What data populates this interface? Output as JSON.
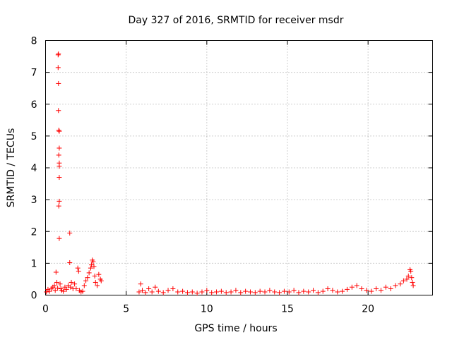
{
  "chart_data": {
    "type": "scatter",
    "title": "Day 327 of 2016, SRMTID for receiver msdr",
    "xlabel": "GPS time / hours",
    "ylabel": "SRMTID / TECUs",
    "xlim": [
      0,
      24
    ],
    "ylim": [
      0,
      8
    ],
    "x_ticks": [
      0,
      5,
      10,
      15,
      20
    ],
    "y_ticks": [
      0,
      1,
      2,
      3,
      4,
      5,
      6,
      7,
      8
    ],
    "grid": true,
    "marker": "plus",
    "series": [
      {
        "name": "SRMTID",
        "color": "#ff0000",
        "points": [
          [
            0.05,
            0.1
          ],
          [
            0.15,
            0.18
          ],
          [
            0.25,
            0.12
          ],
          [
            0.35,
            0.2
          ],
          [
            0.45,
            0.25
          ],
          [
            0.55,
            0.3
          ],
          [
            0.6,
            0.15
          ],
          [
            0.65,
            0.72
          ],
          [
            0.7,
            0.4
          ],
          [
            0.75,
            0.22
          ],
          [
            0.78,
            7.55
          ],
          [
            0.8,
            7.58
          ],
          [
            0.78,
            7.15
          ],
          [
            0.8,
            6.65
          ],
          [
            0.8,
            5.8
          ],
          [
            0.82,
            5.18
          ],
          [
            0.85,
            5.15
          ],
          [
            0.85,
            4.62
          ],
          [
            0.82,
            4.4
          ],
          [
            0.85,
            4.15
          ],
          [
            0.85,
            4.05
          ],
          [
            0.85,
            3.7
          ],
          [
            0.85,
            2.95
          ],
          [
            0.82,
            2.8
          ],
          [
            0.85,
            1.78
          ],
          [
            0.9,
            0.35
          ],
          [
            0.95,
            0.2
          ],
          [
            1.0,
            0.15
          ],
          [
            1.1,
            0.12
          ],
          [
            1.2,
            0.25
          ],
          [
            1.3,
            0.18
          ],
          [
            1.4,
            0.3
          ],
          [
            1.5,
            1.95
          ],
          [
            1.5,
            1.02
          ],
          [
            1.55,
            0.25
          ],
          [
            1.6,
            0.4
          ],
          [
            1.7,
            0.2
          ],
          [
            1.8,
            0.35
          ],
          [
            1.9,
            0.2
          ],
          [
            2.0,
            0.85
          ],
          [
            2.05,
            0.75
          ],
          [
            2.1,
            0.15
          ],
          [
            2.2,
            0.1
          ],
          [
            2.3,
            0.12
          ],
          [
            2.4,
            0.3
          ],
          [
            2.5,
            0.45
          ],
          [
            2.6,
            0.55
          ],
          [
            2.7,
            0.7
          ],
          [
            2.8,
            0.85
          ],
          [
            2.85,
            0.95
          ],
          [
            2.9,
            1.1
          ],
          [
            2.95,
            1.05
          ],
          [
            3.0,
            0.9
          ],
          [
            3.05,
            0.6
          ],
          [
            3.1,
            0.4
          ],
          [
            3.2,
            0.3
          ],
          [
            3.3,
            0.65
          ],
          [
            3.4,
            0.5
          ],
          [
            3.45,
            0.45
          ],
          [
            5.8,
            0.1
          ],
          [
            5.9,
            0.35
          ],
          [
            6.0,
            0.15
          ],
          [
            6.2,
            0.08
          ],
          [
            6.4,
            0.2
          ],
          [
            6.6,
            0.1
          ],
          [
            6.8,
            0.25
          ],
          [
            7.0,
            0.12
          ],
          [
            7.3,
            0.08
          ],
          [
            7.6,
            0.15
          ],
          [
            7.9,
            0.2
          ],
          [
            8.2,
            0.1
          ],
          [
            8.5,
            0.12
          ],
          [
            8.8,
            0.08
          ],
          [
            9.1,
            0.1
          ],
          [
            9.4,
            0.06
          ],
          [
            9.7,
            0.1
          ],
          [
            10.0,
            0.15
          ],
          [
            10.3,
            0.08
          ],
          [
            10.6,
            0.1
          ],
          [
            10.9,
            0.12
          ],
          [
            11.2,
            0.08
          ],
          [
            11.5,
            0.1
          ],
          [
            11.8,
            0.15
          ],
          [
            12.1,
            0.08
          ],
          [
            12.4,
            0.12
          ],
          [
            12.7,
            0.1
          ],
          [
            13.0,
            0.08
          ],
          [
            13.3,
            0.12
          ],
          [
            13.6,
            0.1
          ],
          [
            13.9,
            0.15
          ],
          [
            14.2,
            0.1
          ],
          [
            14.5,
            0.08
          ],
          [
            14.8,
            0.12
          ],
          [
            15.1,
            0.1
          ],
          [
            15.4,
            0.15
          ],
          [
            15.7,
            0.08
          ],
          [
            16.0,
            0.12
          ],
          [
            16.3,
            0.1
          ],
          [
            16.6,
            0.15
          ],
          [
            16.9,
            0.08
          ],
          [
            17.2,
            0.12
          ],
          [
            17.5,
            0.2
          ],
          [
            17.8,
            0.15
          ],
          [
            18.1,
            0.1
          ],
          [
            18.4,
            0.12
          ],
          [
            18.7,
            0.18
          ],
          [
            19.0,
            0.25
          ],
          [
            19.3,
            0.3
          ],
          [
            19.6,
            0.2
          ],
          [
            19.9,
            0.15
          ],
          [
            20.2,
            0.12
          ],
          [
            20.5,
            0.2
          ],
          [
            20.8,
            0.15
          ],
          [
            21.1,
            0.25
          ],
          [
            21.4,
            0.2
          ],
          [
            21.7,
            0.3
          ],
          [
            22.0,
            0.35
          ],
          [
            22.2,
            0.45
          ],
          [
            22.4,
            0.5
          ],
          [
            22.5,
            0.6
          ],
          [
            22.6,
            0.8
          ],
          [
            22.65,
            0.75
          ],
          [
            22.7,
            0.55
          ],
          [
            22.75,
            0.4
          ],
          [
            22.8,
            0.3
          ]
        ]
      }
    ]
  }
}
